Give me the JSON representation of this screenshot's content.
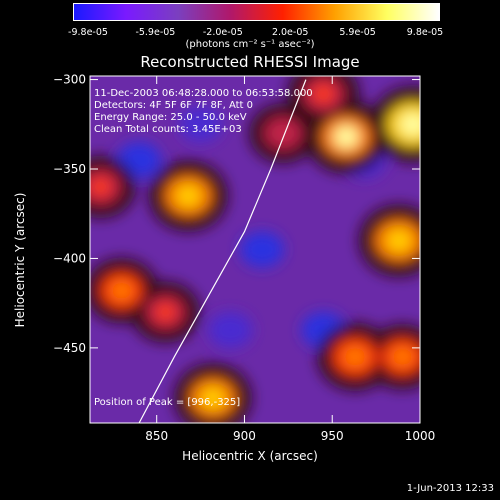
{
  "colorbar": {
    "ticks": [
      "-9.8e-05",
      "-5.9e-05",
      "-2.0e-05",
      "2.0e-05",
      "5.9e-05",
      "9.8e-05"
    ],
    "units": "(photons cm⁻² s⁻¹ asec⁻²)",
    "colors": [
      "#1a1aff",
      "#7a1aff",
      "#7b3fbf",
      "#b0186a",
      "#ff2000",
      "#ffa000",
      "#ffff60",
      "#ffffff"
    ]
  },
  "chart_data": {
    "type": "heatmap",
    "title": "Reconstructed RHESSI Image",
    "xlabel": "Heliocentric X (arcsec)",
    "ylabel": "Heliocentric Y (arcsec)",
    "xlim": [
      812,
      1000
    ],
    "ylim": [
      -492,
      -298
    ],
    "xticks": [
      850,
      900,
      950,
      1000
    ],
    "yticks": [
      -300,
      -350,
      -400,
      -450
    ],
    "peaks": [
      {
        "x": 996,
        "y": -325,
        "level": 1.0
      },
      {
        "x": 958,
        "y": -332,
        "level": 0.9
      },
      {
        "x": 988,
        "y": -390,
        "level": 0.85
      },
      {
        "x": 868,
        "y": -365,
        "level": 0.8
      },
      {
        "x": 882,
        "y": -478,
        "level": 0.75
      },
      {
        "x": 945,
        "y": -308,
        "level": 0.55
      },
      {
        "x": 963,
        "y": -455,
        "level": 0.7
      },
      {
        "x": 830,
        "y": -418,
        "level": 0.6
      },
      {
        "x": 818,
        "y": -360,
        "level": 0.5
      },
      {
        "x": 855,
        "y": -430,
        "level": 0.45
      },
      {
        "x": 990,
        "y": -455,
        "level": 0.6
      },
      {
        "x": 922,
        "y": -330,
        "level": 0.4
      }
    ],
    "troughs": [
      {
        "x": 840,
        "y": -345,
        "level": -0.8
      },
      {
        "x": 910,
        "y": -395,
        "level": -0.9
      },
      {
        "x": 945,
        "y": -440,
        "level": -0.8
      },
      {
        "x": 892,
        "y": -440,
        "level": -0.6
      },
      {
        "x": 968,
        "y": -345,
        "level": -0.6
      },
      {
        "x": 875,
        "y": -325,
        "level": -0.5
      }
    ],
    "limb": [
      [
        840,
        -492
      ],
      [
        860,
        -455
      ],
      [
        880,
        -420
      ],
      [
        900,
        -385
      ],
      [
        915,
        -350
      ],
      [
        935,
        -300
      ]
    ]
  },
  "annotations": {
    "time": "11-Dec-2003 06:48:28.000 to 06:53:58.000",
    "detectors": "Detectors: 4F 5F 6F 7F 8F, Att 0",
    "energy": "Energy Range: 25.0 - 50.0 keV",
    "clean": "Clean     Total counts: 3.45E+03",
    "peak": "Position of Peak = [996,-325]"
  },
  "footer": "1-Jun-2013 12:33"
}
